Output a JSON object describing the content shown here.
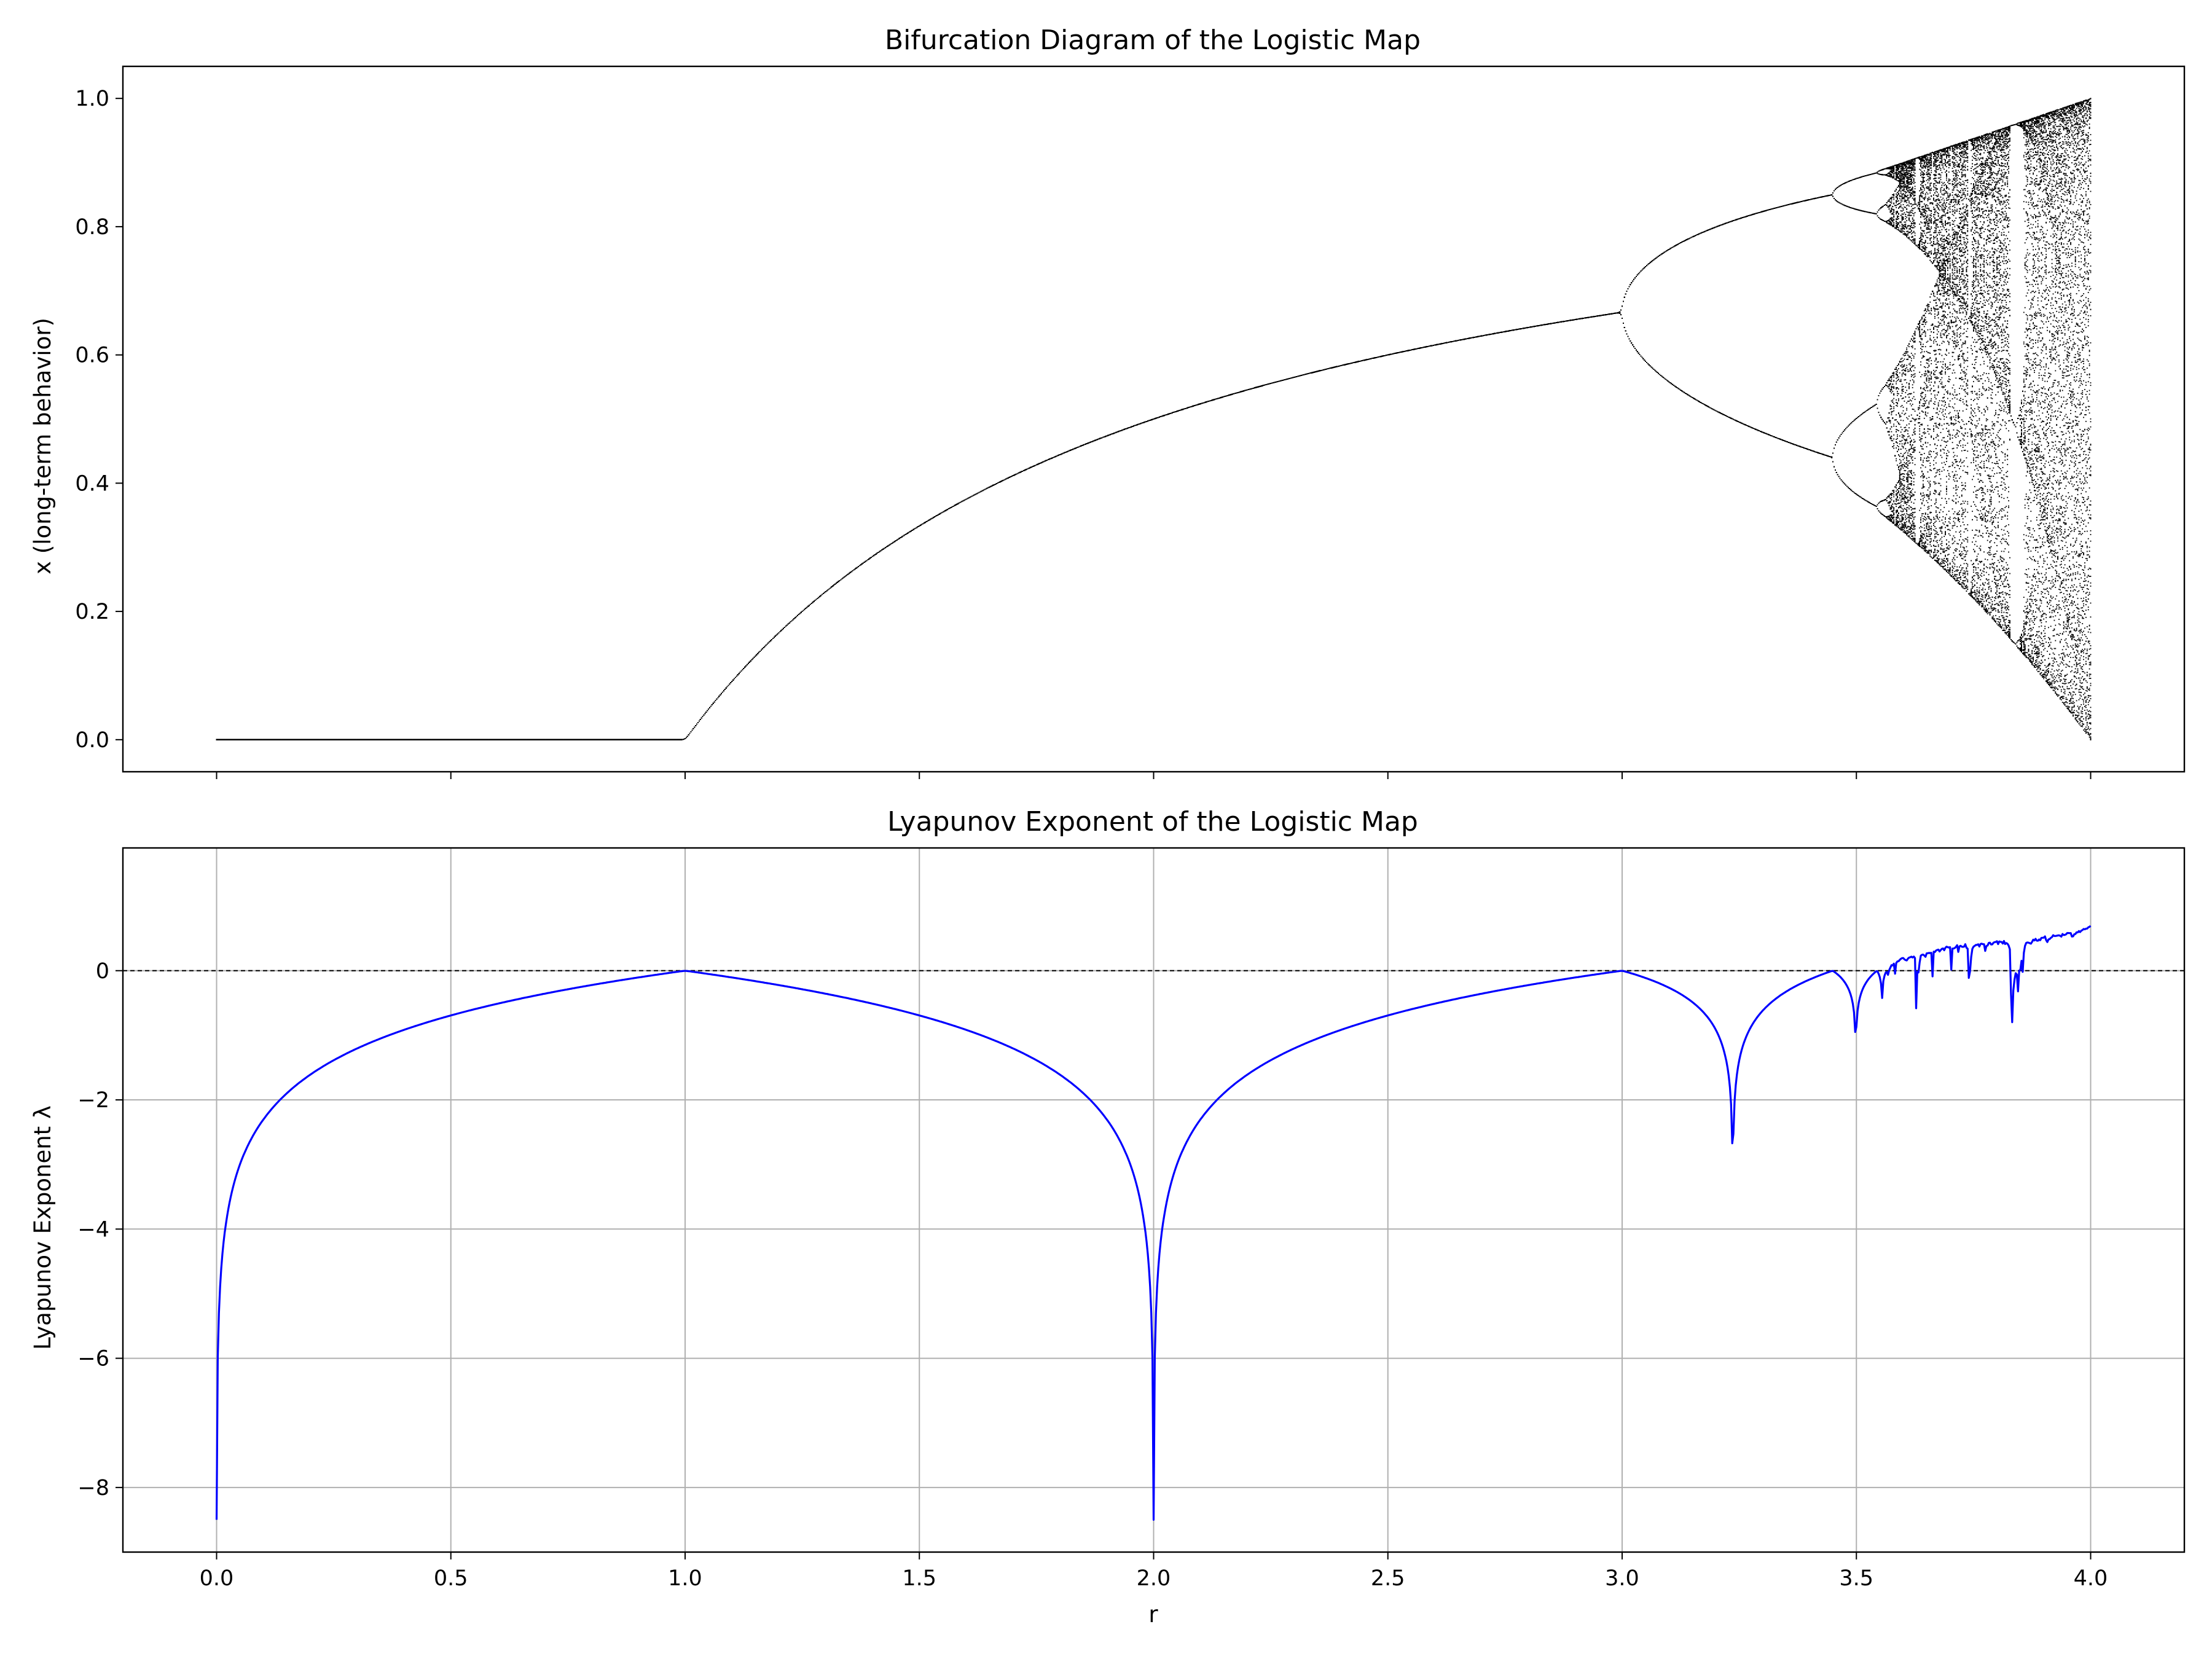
{
  "chart_data": [
    {
      "type": "scatter",
      "title": "Bifurcation Diagram of the Logistic Map",
      "xlabel": "",
      "ylabel": "x (long-term behavior)",
      "xlim": [
        -0.2,
        4.2
      ],
      "ylim": [
        -0.05,
        1.05
      ],
      "grid": false,
      "x_ticks": [
        0.0,
        0.5,
        1.0,
        1.5,
        2.0,
        2.5,
        3.0,
        3.5,
        4.0
      ],
      "y_ticks": [
        0.0,
        0.2,
        0.4,
        0.6,
        0.8,
        1.0
      ],
      "y_tick_labels": [
        "0.0",
        "0.2",
        "0.4",
        "0.6",
        "0.8",
        "1.0"
      ],
      "series_color": "#000000",
      "x_range": [
        0.0,
        4.0
      ],
      "x_step": 0.0025,
      "fixed_point_below_r1": 0.0,
      "fixed_point_above_r1": "1 - 1/r",
      "first_period_doubling_r": 3.0,
      "second_period_doubling_r": 3.449,
      "chaos_onset_r": 3.5699,
      "sample_points": [
        {
          "r": 0.0,
          "x": [
            0.0
          ]
        },
        {
          "r": 0.5,
          "x": [
            0.0
          ]
        },
        {
          "r": 1.0,
          "x": [
            0.0
          ]
        },
        {
          "r": 1.5,
          "x": [
            0.333
          ]
        },
        {
          "r": 2.0,
          "x": [
            0.5
          ]
        },
        {
          "r": 2.5,
          "x": [
            0.6
          ]
        },
        {
          "r": 3.0,
          "x": [
            0.667
          ]
        },
        {
          "r": 3.2,
          "x": [
            0.513,
            0.799
          ]
        },
        {
          "r": 3.45,
          "x": [
            0.44,
            0.85
          ]
        },
        {
          "r": 3.5,
          "x": [
            0.383,
            0.827,
            0.501,
            0.875
          ]
        },
        {
          "r": 3.83,
          "x": [
            0.156,
            0.504,
            0.957
          ]
        },
        {
          "r": 4.0,
          "x_range": [
            0.0,
            1.0
          ]
        }
      ]
    },
    {
      "type": "line",
      "title": "Lyapunov Exponent of the Logistic Map",
      "xlabel": "r",
      "ylabel": "Lyapunov Exponent λ",
      "xlim": [
        -0.2,
        4.2
      ],
      "ylim": [
        -9.0,
        1.9
      ],
      "grid": true,
      "x_ticks": [
        0.0,
        0.5,
        1.0,
        1.5,
        2.0,
        2.5,
        3.0,
        3.5,
        4.0
      ],
      "x_tick_labels": [
        "0.0",
        "0.5",
        "1.0",
        "1.5",
        "2.0",
        "2.5",
        "3.0",
        "3.5",
        "4.0"
      ],
      "y_ticks": [
        -8,
        -6,
        -4,
        -2,
        0
      ],
      "y_tick_labels": [
        "−8",
        "−6",
        "−4",
        "−2",
        "0"
      ],
      "series_color": "#0000ff",
      "reference_line": {
        "y": 0,
        "style": "dashed",
        "color": "#000000"
      },
      "x_range": [
        0.0,
        4.0
      ],
      "x_step": 0.0025,
      "sample_points": [
        {
          "r": 0.0,
          "lambda": -7.8
        },
        {
          "r": 0.5,
          "lambda": -0.69
        },
        {
          "r": 1.0,
          "lambda": 0.0
        },
        {
          "r": 1.5,
          "lambda": -0.69
        },
        {
          "r": 2.0,
          "lambda": -8.5
        },
        {
          "r": 2.5,
          "lambda": -0.69
        },
        {
          "r": 3.0,
          "lambda": 0.0
        },
        {
          "r": 3.236,
          "lambda": -3.65
        },
        {
          "r": 3.449,
          "lambda": 0.0
        },
        {
          "r": 3.5,
          "lambda": -1.37
        },
        {
          "r": 3.628,
          "lambda": -0.98
        },
        {
          "r": 3.832,
          "lambda": -1.37
        },
        {
          "r": 4.0,
          "lambda": 1.4
        }
      ]
    }
  ]
}
